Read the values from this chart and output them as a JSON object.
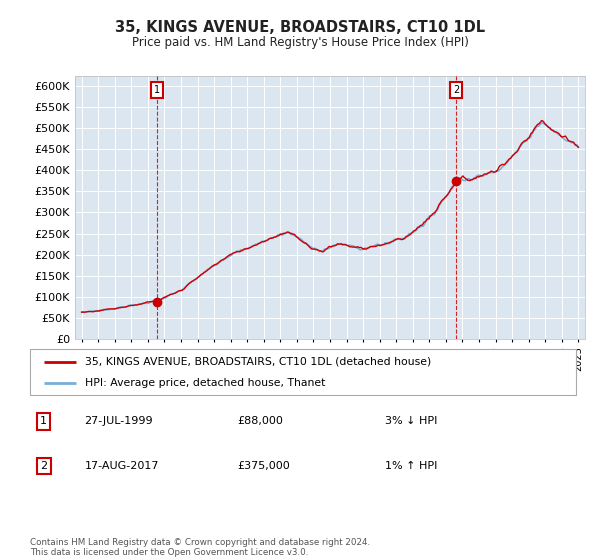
{
  "title": "35, KINGS AVENUE, BROADSTAIRS, CT10 1DL",
  "subtitle": "Price paid vs. HM Land Registry's House Price Index (HPI)",
  "ylim": [
    0,
    625000
  ],
  "yticks": [
    0,
    50000,
    100000,
    150000,
    200000,
    250000,
    300000,
    350000,
    400000,
    450000,
    500000,
    550000,
    600000
  ],
  "hpi_color": "#7aaed6",
  "price_color": "#cc0000",
  "plot_bg": "#dce6f1",
  "grid_color": "#ffffff",
  "legend_line1": "35, KINGS AVENUE, BROADSTAIRS, CT10 1DL (detached house)",
  "legend_line2": "HPI: Average price, detached house, Thanet",
  "annotation1_label": "1",
  "annotation1_date": "27-JUL-1999",
  "annotation1_price": "£88,000",
  "annotation1_hpi": "3% ↓ HPI",
  "annotation2_label": "2",
  "annotation2_date": "17-AUG-2017",
  "annotation2_price": "£375,000",
  "annotation2_hpi": "1% ↑ HPI",
  "footer": "Contains HM Land Registry data © Crown copyright and database right 2024.\nThis data is licensed under the Open Government Licence v3.0.",
  "sale1_year": 1999.57,
  "sale1_price": 88000,
  "sale2_year": 2017.63,
  "sale2_price": 375000
}
